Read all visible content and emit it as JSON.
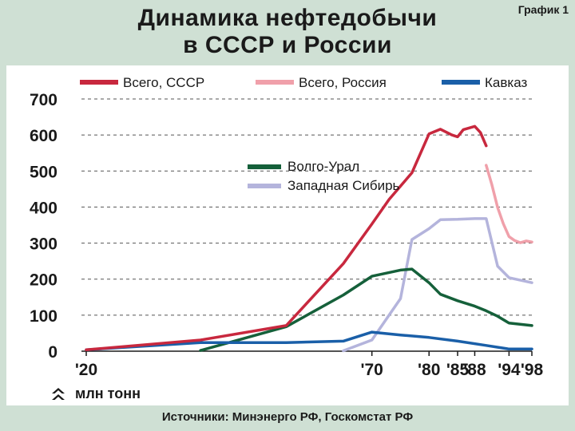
{
  "header": {
    "title_line1": "Динамика нефтедобычи",
    "title_line2": "в СССР и России",
    "figure_label": "График 1"
  },
  "footer": {
    "unit": "млн тонн",
    "unit_icon": "double-chevron-up-icon",
    "sources": "Источники: Минэнерго РФ, Госкомстат РФ"
  },
  "chart_data": {
    "type": "line",
    "title": "Динамика нефтедобычи в СССР и России",
    "ylabel": "млн тонн",
    "xlim": [
      1920,
      1998
    ],
    "ylim": [
      0,
      700
    ],
    "y_ticks": [
      0,
      100,
      200,
      300,
      400,
      500,
      600,
      700
    ],
    "x_ticks": [
      {
        "value": 1920,
        "label": "'20"
      },
      {
        "value": 1970,
        "label": "'70"
      },
      {
        "value": 1980,
        "label": "'80"
      },
      {
        "value": 1985,
        "label": "'85"
      },
      {
        "value": 1988,
        "label": "'88"
      },
      {
        "value": 1994,
        "label": "'94"
      },
      {
        "value": 1998,
        "label": "'98"
      }
    ],
    "grid": true,
    "legend": "top",
    "series": [
      {
        "name": "Всего, СССР",
        "color": "#c8283e",
        "points": [
          [
            1920,
            4
          ],
          [
            1940,
            31
          ],
          [
            1955,
            71
          ],
          [
            1965,
            243
          ],
          [
            1970,
            353
          ],
          [
            1973,
            421
          ],
          [
            1977,
            495
          ],
          [
            1980,
            603
          ],
          [
            1982,
            616
          ],
          [
            1984,
            600
          ],
          [
            1985,
            595
          ],
          [
            1986,
            615
          ],
          [
            1988,
            624
          ],
          [
            1989,
            607
          ],
          [
            1990,
            570
          ]
        ]
      },
      {
        "name": "Всего, Россия",
        "color": "#f0a0aa",
        "points": [
          [
            1990,
            516
          ],
          [
            1991,
            462
          ],
          [
            1992,
            399
          ],
          [
            1993,
            354
          ],
          [
            1994,
            318
          ],
          [
            1995,
            307
          ],
          [
            1996,
            301
          ],
          [
            1997,
            306
          ],
          [
            1998,
            303
          ]
        ]
      },
      {
        "name": "Кавказ",
        "color": "#1a5fa8",
        "points": [
          [
            1920,
            4
          ],
          [
            1940,
            24
          ],
          [
            1955,
            24
          ],
          [
            1965,
            28
          ],
          [
            1970,
            53
          ],
          [
            1975,
            45
          ],
          [
            1980,
            38
          ],
          [
            1985,
            28
          ],
          [
            1990,
            16
          ],
          [
            1994,
            6
          ],
          [
            1998,
            6
          ]
        ]
      },
      {
        "name": "Волго-Урал",
        "color": "#15603a",
        "points": [
          [
            1940,
            2
          ],
          [
            1955,
            68
          ],
          [
            1965,
            156
          ],
          [
            1970,
            208
          ],
          [
            1975,
            225
          ],
          [
            1977,
            228
          ],
          [
            1980,
            190
          ],
          [
            1982,
            158
          ],
          [
            1985,
            140
          ],
          [
            1988,
            125
          ],
          [
            1990,
            112
          ],
          [
            1992,
            97
          ],
          [
            1994,
            78
          ],
          [
            1998,
            71
          ]
        ]
      },
      {
        "name": "Западная Сибирь",
        "color": "#b4b4dc",
        "points": [
          [
            1965,
            1
          ],
          [
            1970,
            31
          ],
          [
            1975,
            146
          ],
          [
            1977,
            310
          ],
          [
            1980,
            340
          ],
          [
            1982,
            365
          ],
          [
            1985,
            366
          ],
          [
            1988,
            368
          ],
          [
            1990,
            368
          ],
          [
            1992,
            236
          ],
          [
            1994,
            204
          ],
          [
            1996,
            197
          ],
          [
            1998,
            190
          ]
        ]
      }
    ]
  }
}
